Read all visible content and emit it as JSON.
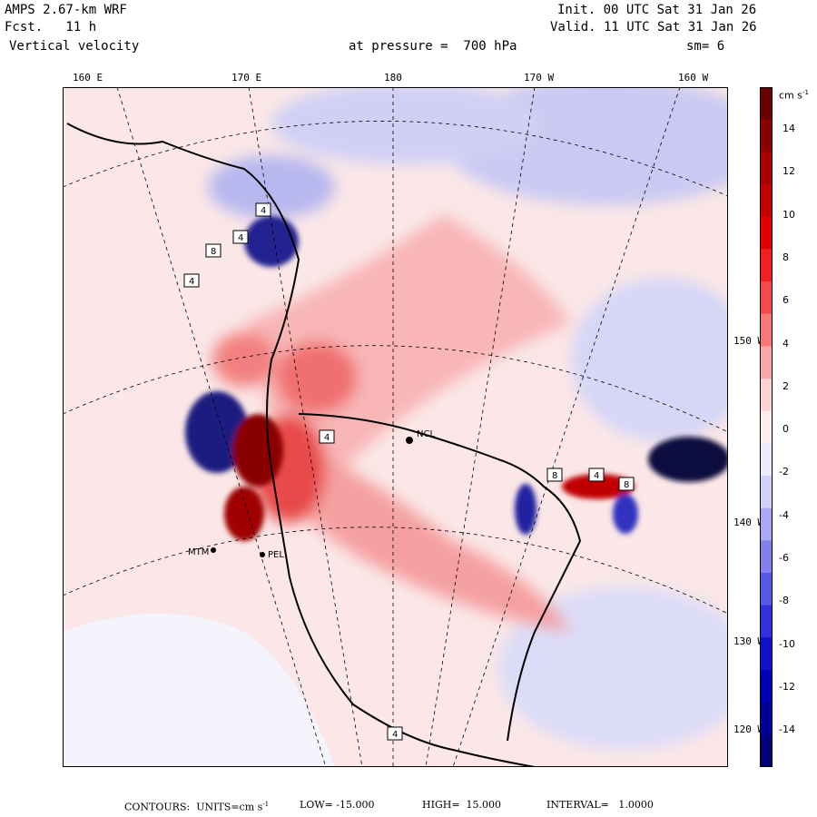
{
  "header": {
    "model": "AMPS 2.67-km WRF",
    "forecast": "Fcst.   11 h",
    "field": "Vertical velocity",
    "init": "Init. 00 UTC Sat 31 Jan 26",
    "valid": "Valid. 11 UTC Sat 31 Jan 26",
    "pressure": "at pressure =  700 hPa",
    "smoothing": "sm= 6"
  },
  "top_longitudes": [
    "160 E",
    "170 E",
    "180",
    "170 W",
    "160 W"
  ],
  "right_latitudes": [
    "150 W",
    "140 W",
    "130 W",
    "120 W"
  ],
  "stations": [
    "NCL",
    "MTM",
    "PEL",
    "4",
    "4",
    "8",
    "4",
    "4",
    "8",
    "8",
    "4",
    "4"
  ],
  "colorbar": {
    "units": "cm s",
    "units_exp": "-1",
    "ticks": [
      "14",
      "12",
      "10",
      "8",
      "6",
      "4",
      "2",
      "0",
      "-2",
      "-4",
      "-6",
      "-8",
      "-10",
      "-12",
      "-14"
    ],
    "colors": [
      "#6b0000",
      "#8a0000",
      "#a80000",
      "#c40000",
      "#e00000",
      "#f02020",
      "#f54a4a",
      "#f87878",
      "#fba6a6",
      "#fdd2d2",
      "#ffecec",
      "#ececff",
      "#d0d0fb",
      "#a8a8f5",
      "#8080ee",
      "#5858e6",
      "#3030dc",
      "#1010cc",
      "#0000b4",
      "#000096",
      "#000078"
    ]
  },
  "footer": {
    "contours": "CONTOURS:  UNITS=cm s",
    "units_exp": "-1",
    "low": "LOW= -15.000",
    "high": "HIGH=  15.000",
    "interval": "INTERVAL=   1.0000"
  }
}
